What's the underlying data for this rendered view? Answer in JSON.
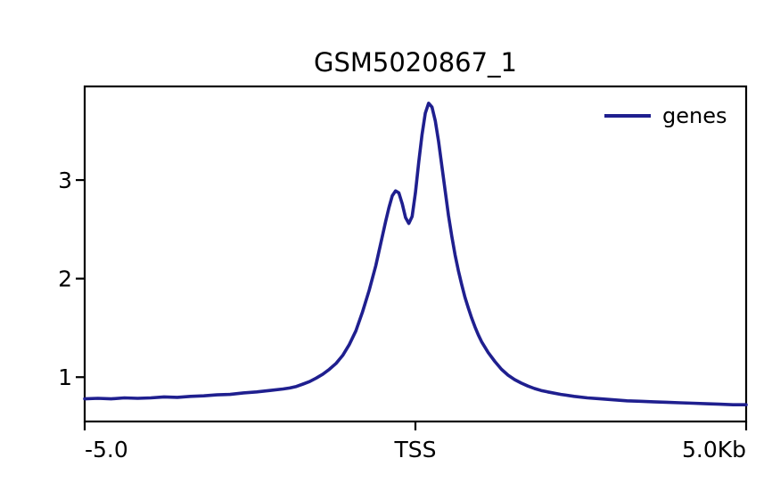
{
  "chart_data": {
    "type": "line",
    "title": "GSM5020867_1",
    "xlabel": "",
    "ylabel": "",
    "xlim": [
      -5.0,
      5.0
    ],
    "ylim": [
      0.55,
      3.95
    ],
    "grid": false,
    "legend_position": "upper right",
    "legend_frame": false,
    "xticks": [
      {
        "pos": -5.0,
        "label": "-5.0",
        "align": "left"
      },
      {
        "pos": 0.0,
        "label": "TSS",
        "align": "center"
      },
      {
        "pos": 5.0,
        "label": "5.0Kb",
        "align": "right"
      }
    ],
    "yticks": [
      {
        "pos": 1,
        "label": "1"
      },
      {
        "pos": 2,
        "label": "2"
      },
      {
        "pos": 3,
        "label": "3"
      }
    ],
    "colors": {
      "line": "#1f1f8f",
      "axis": "#000000",
      "text": "#000000",
      "background": "#ffffff"
    },
    "series": [
      {
        "name": "genes",
        "color": "#1f1f8f",
        "points": [
          [
            -5.0,
            0.78
          ],
          [
            -4.8,
            0.785
          ],
          [
            -4.6,
            0.78
          ],
          [
            -4.4,
            0.79
          ],
          [
            -4.2,
            0.785
          ],
          [
            -4.0,
            0.79
          ],
          [
            -3.8,
            0.8
          ],
          [
            -3.6,
            0.795
          ],
          [
            -3.4,
            0.805
          ],
          [
            -3.2,
            0.81
          ],
          [
            -3.0,
            0.82
          ],
          [
            -2.8,
            0.825
          ],
          [
            -2.6,
            0.84
          ],
          [
            -2.4,
            0.85
          ],
          [
            -2.2,
            0.865
          ],
          [
            -2.0,
            0.88
          ],
          [
            -1.9,
            0.89
          ],
          [
            -1.8,
            0.905
          ],
          [
            -1.7,
            0.93
          ],
          [
            -1.6,
            0.955
          ],
          [
            -1.5,
            0.99
          ],
          [
            -1.4,
            1.03
          ],
          [
            -1.3,
            1.08
          ],
          [
            -1.2,
            1.14
          ],
          [
            -1.1,
            1.22
          ],
          [
            -1.0,
            1.33
          ],
          [
            -0.9,
            1.47
          ],
          [
            -0.8,
            1.66
          ],
          [
            -0.7,
            1.88
          ],
          [
            -0.6,
            2.13
          ],
          [
            -0.55,
            2.28
          ],
          [
            -0.5,
            2.43
          ],
          [
            -0.45,
            2.58
          ],
          [
            -0.4,
            2.72
          ],
          [
            -0.35,
            2.84
          ],
          [
            -0.3,
            2.89
          ],
          [
            -0.25,
            2.87
          ],
          [
            -0.2,
            2.76
          ],
          [
            -0.15,
            2.62
          ],
          [
            -0.1,
            2.56
          ],
          [
            -0.05,
            2.63
          ],
          [
            0.0,
            2.87
          ],
          [
            0.05,
            3.18
          ],
          [
            0.1,
            3.46
          ],
          [
            0.15,
            3.68
          ],
          [
            0.2,
            3.78
          ],
          [
            0.25,
            3.74
          ],
          [
            0.3,
            3.6
          ],
          [
            0.35,
            3.39
          ],
          [
            0.4,
            3.14
          ],
          [
            0.45,
            2.89
          ],
          [
            0.5,
            2.64
          ],
          [
            0.55,
            2.43
          ],
          [
            0.6,
            2.24
          ],
          [
            0.65,
            2.08
          ],
          [
            0.7,
            1.94
          ],
          [
            0.75,
            1.81
          ],
          [
            0.8,
            1.7
          ],
          [
            0.85,
            1.6
          ],
          [
            0.9,
            1.51
          ],
          [
            0.95,
            1.43
          ],
          [
            1.0,
            1.36
          ],
          [
            1.1,
            1.25
          ],
          [
            1.2,
            1.16
          ],
          [
            1.3,
            1.08
          ],
          [
            1.4,
            1.02
          ],
          [
            1.5,
            0.975
          ],
          [
            1.6,
            0.94
          ],
          [
            1.7,
            0.91
          ],
          [
            1.8,
            0.885
          ],
          [
            1.9,
            0.865
          ],
          [
            2.0,
            0.85
          ],
          [
            2.2,
            0.825
          ],
          [
            2.4,
            0.805
          ],
          [
            2.6,
            0.79
          ],
          [
            2.8,
            0.78
          ],
          [
            3.0,
            0.77
          ],
          [
            3.2,
            0.76
          ],
          [
            3.4,
            0.755
          ],
          [
            3.6,
            0.75
          ],
          [
            3.8,
            0.745
          ],
          [
            4.0,
            0.74
          ],
          [
            4.2,
            0.735
          ],
          [
            4.4,
            0.73
          ],
          [
            4.6,
            0.725
          ],
          [
            4.8,
            0.72
          ],
          [
            5.0,
            0.72
          ]
        ]
      }
    ]
  }
}
